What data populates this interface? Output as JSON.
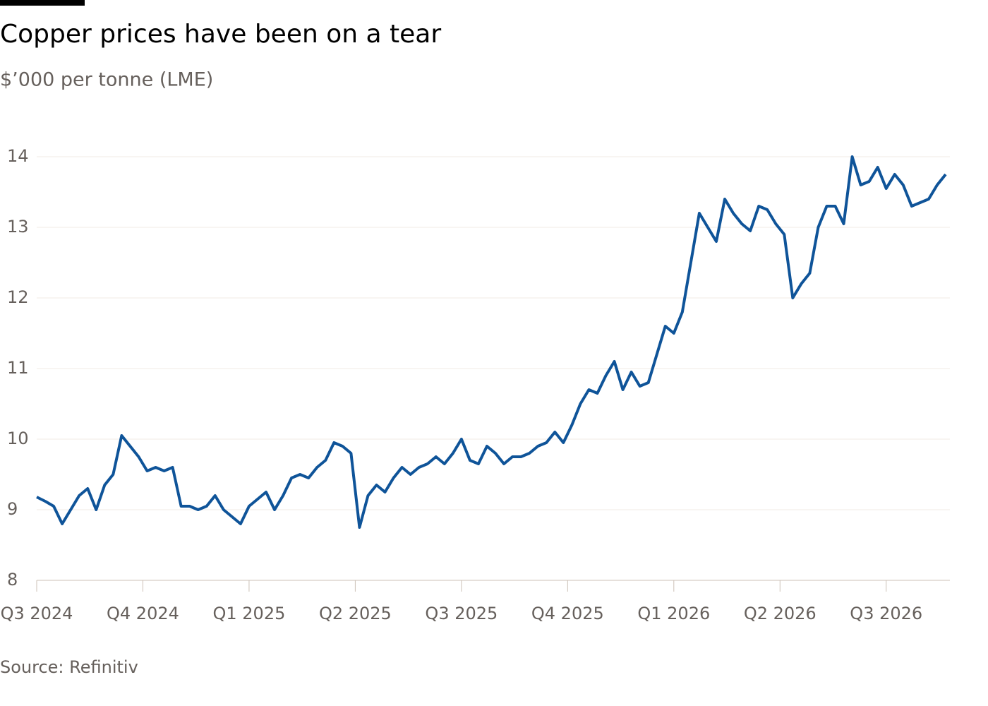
{
  "chart_data": {
    "type": "line",
    "title": "Copper prices have been on a tear",
    "subtitle": "$’000 per tonne (LME)",
    "source": "Source: Refinitiv",
    "x": [
      2024.5,
      2024.52,
      2024.54,
      2024.56,
      2024.58,
      2024.6,
      2024.62,
      2024.64,
      2024.66,
      2024.68,
      2024.7,
      2024.72,
      2024.74,
      2024.76,
      2024.78,
      2024.8,
      2024.82,
      2024.84,
      2024.86,
      2024.88,
      2024.9,
      2024.92,
      2024.94,
      2024.96,
      2024.98,
      2025,
      2025.02,
      2025.04,
      2025.06,
      2025.08,
      2025.1,
      2025.12,
      2025.14,
      2025.16,
      2025.18,
      2025.2,
      2025.22,
      2025.24,
      2025.26,
      2025.28,
      2025.3,
      2025.32,
      2025.34,
      2025.36,
      2025.38,
      2025.4,
      2025.42,
      2025.44,
      2025.46,
      2025.48,
      2025.5,
      2025.52,
      2025.54,
      2025.56,
      2025.58,
      2025.6,
      2025.62,
      2025.64,
      2025.66,
      2025.68,
      2025.7,
      2025.72,
      2025.74,
      2025.76,
      2025.78,
      2025.8,
      2025.82,
      2025.84,
      2025.86,
      2025.88,
      2025.9,
      2025.92,
      2025.94,
      2025.96,
      2025.98,
      2026,
      2026.02,
      2026.04,
      2026.06,
      2026.08,
      2026.1,
      2026.12,
      2026.14,
      2026.16,
      2026.18,
      2026.2,
      2026.22,
      2026.24,
      2026.26,
      2026.28,
      2026.3,
      2026.32,
      2026.34,
      2026.36,
      2026.38,
      2026.4,
      2026.42,
      2026.44,
      2026.46,
      2026.48,
      2026.5,
      2026.52,
      2026.54,
      2026.56,
      2026.58,
      2026.6,
      2026.62,
      2026.64
    ],
    "series": [
      {
        "name": "Copper",
        "color": "#0f5499",
        "values": [
          9.18,
          9.12,
          9.05,
          8.8,
          9.0,
          9.2,
          9.3,
          9.0,
          9.35,
          9.5,
          10.05,
          9.9,
          9.75,
          9.55,
          9.6,
          9.55,
          9.6,
          9.05,
          9.05,
          9.0,
          9.05,
          9.2,
          9.0,
          8.9,
          8.8,
          9.05,
          9.15,
          9.25,
          9.0,
          9.2,
          9.45,
          9.5,
          9.45,
          9.6,
          9.7,
          9.95,
          9.9,
          9.8,
          8.75,
          9.2,
          9.35,
          9.25,
          9.45,
          9.6,
          9.5,
          9.6,
          9.65,
          9.75,
          9.65,
          9.8,
          10.0,
          9.7,
          9.65,
          9.9,
          9.8,
          9.65,
          9.75,
          9.75,
          9.8,
          9.9,
          9.95,
          10.1,
          9.95,
          10.2,
          10.5,
          10.7,
          10.65,
          10.9,
          11.1,
          10.7,
          10.95,
          10.75,
          10.8,
          11.2,
          11.6,
          11.5,
          11.8,
          12.5,
          13.2,
          13.0,
          12.8,
          13.4,
          13.2,
          13.05,
          12.95,
          13.3,
          13.25,
          13.05,
          12.9,
          12.0,
          12.2,
          12.35,
          13.0,
          13.3,
          13.3,
          13.05,
          14.0,
          13.6,
          13.65,
          13.85,
          13.55,
          13.75,
          13.6,
          13.3,
          13.35,
          13.4,
          13.6,
          13.75
        ]
      }
    ],
    "xlim": [
      2024.5,
      2026.64
    ],
    "xticks": [
      {
        "value": 2024.5,
        "label": "Q3 2024"
      },
      {
        "value": 2024.75,
        "label": "Q4 2024"
      },
      {
        "value": 2025,
        "label": "Q1 2025"
      },
      {
        "value": 2025.25,
        "label": "Q2 2025"
      },
      {
        "value": 2025.5,
        "label": "Q3 2025"
      },
      {
        "value": 2025.75,
        "label": "Q4 2025"
      },
      {
        "value": 2026,
        "label": "Q1 2026"
      },
      {
        "value": 2026.25,
        "label": "Q2 2026"
      },
      {
        "value": 2026.5,
        "label": "Q3 2026"
      }
    ],
    "ylim": [
      8,
      14
    ],
    "yticks": [
      8,
      9,
      10,
      11,
      12,
      13,
      14
    ],
    "grid": true
  }
}
